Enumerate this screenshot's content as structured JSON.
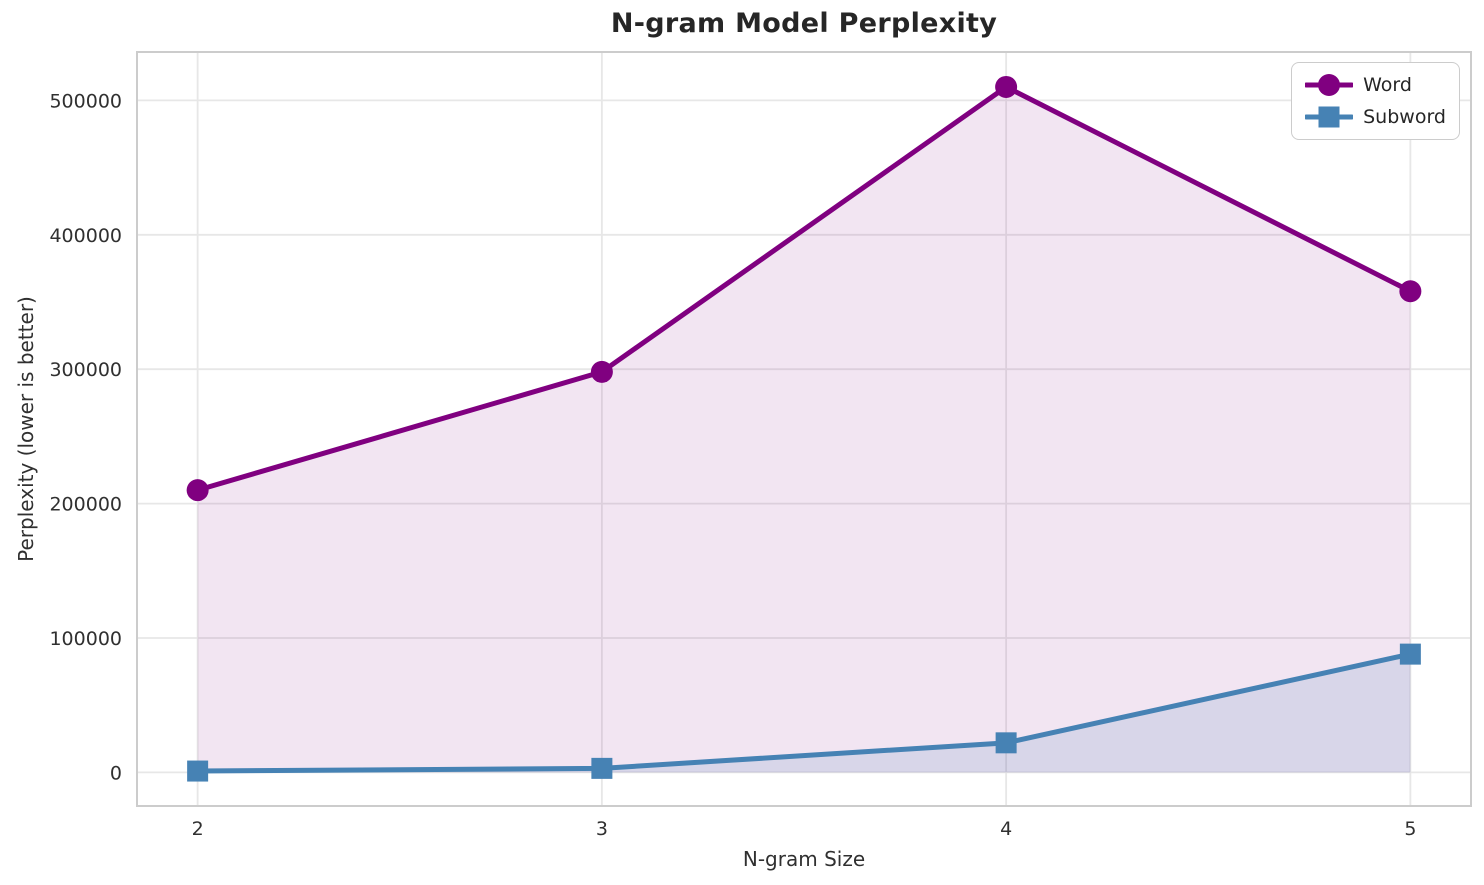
{
  "chart_data": {
    "type": "line",
    "title": "N-gram Model Perplexity",
    "xlabel": "N-gram Size",
    "ylabel": "Perplexity (lower is better)",
    "x": [
      2,
      3,
      4,
      5
    ],
    "xtick_labels": [
      "2",
      "3",
      "4",
      "5"
    ],
    "ytick_values": [
      0,
      100000,
      200000,
      300000,
      400000,
      500000
    ],
    "ytick_labels": [
      "0",
      "100000",
      "200000",
      "300000",
      "400000",
      "500000"
    ],
    "xlim": [
      1.85,
      5.15
    ],
    "ylim": [
      -25000,
      536000
    ],
    "grid": true,
    "legend_position": "upper right",
    "series": [
      {
        "name": "Word",
        "color": "#800080",
        "marker": "circle",
        "fill_alpha": 0.1,
        "fill_to": 0,
        "values": [
          210000,
          298000,
          510000,
          358000
        ]
      },
      {
        "name": "Subword",
        "color": "#4682b4",
        "marker": "square",
        "fill_alpha": 0.15,
        "fill_to": 0,
        "values": [
          1000,
          3000,
          22000,
          88000
        ]
      }
    ]
  },
  "colors": {
    "background": "#ffffff",
    "grid": "#e7e7e7",
    "spine": "#cccccc",
    "title_text": "#262626",
    "tick_text": "#303030",
    "legend_border": "#cccccc",
    "legend_bg": "#ffffff",
    "legend_text": "#262626"
  }
}
